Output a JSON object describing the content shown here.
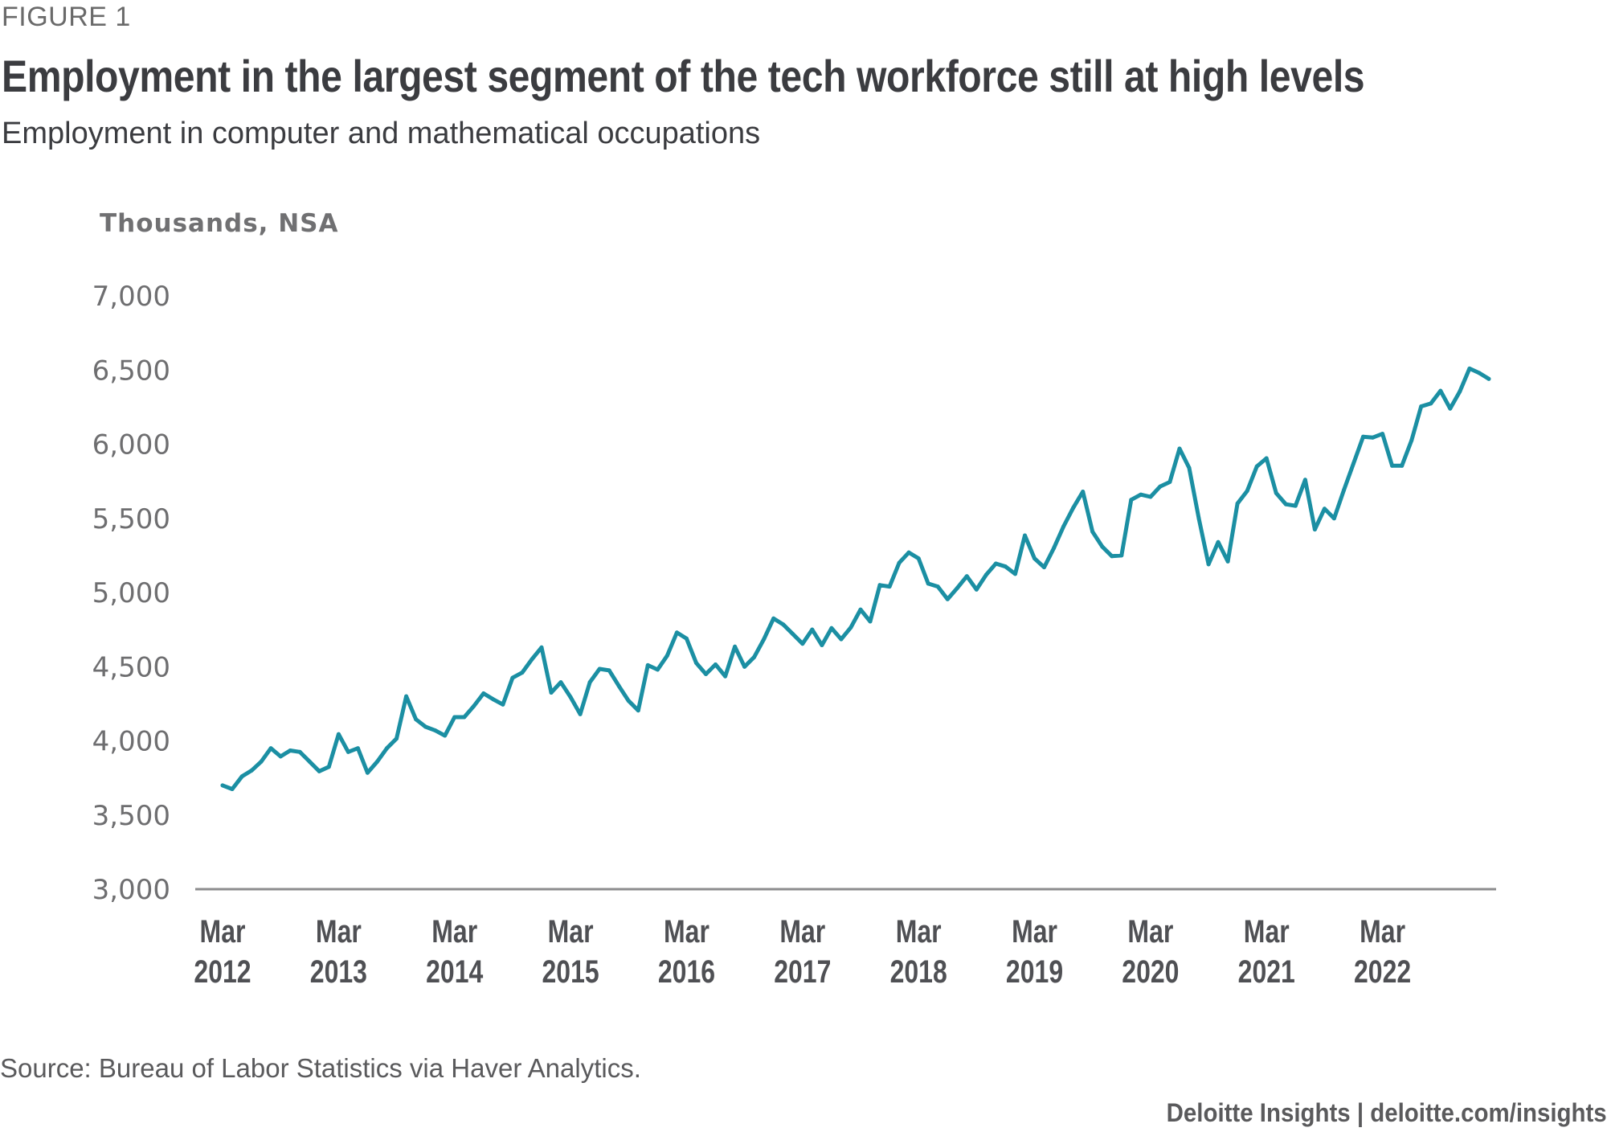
{
  "figure_label": "FIGURE 1",
  "title": "Employment in the largest segment of the tech workforce still at high levels",
  "subtitle": "Employment in computer and mathematical occupations",
  "source": "Source: Bureau of Labor Statistics via Haver Analytics.",
  "footer": "Deloitte Insights | deloitte.com/insights",
  "colors": {
    "line": "#1b8fa3",
    "axis": "#8c8c8e",
    "text": "#3b3c40"
  },
  "chart_data": {
    "type": "line",
    "title": "Employment in the largest segment of the tech workforce still at high levels",
    "subtitle": "Employment in computer and mathematical occupations",
    "xlabel": "",
    "ylabel": "Thousands, NSA",
    "ylim": [
      3000,
      7000
    ],
    "yticks": [
      3000,
      3500,
      4000,
      4500,
      5000,
      5500,
      6000,
      6500,
      7000
    ],
    "ytick_labels": [
      "3,000",
      "3,500",
      "4,000",
      "4,500",
      "5,000",
      "5,500",
      "6,000",
      "6,500",
      "7,000"
    ],
    "xtick_labels": [
      {
        "month": "Mar",
        "year": "2012"
      },
      {
        "month": "Mar",
        "year": "2013"
      },
      {
        "month": "Mar",
        "year": "2014"
      },
      {
        "month": "Mar",
        "year": "2015"
      },
      {
        "month": "Mar",
        "year": "2016"
      },
      {
        "month": "Mar",
        "year": "2017"
      },
      {
        "month": "Mar",
        "year": "2018"
      },
      {
        "month": "Mar",
        "year": "2019"
      },
      {
        "month": "Mar",
        "year": "2020"
      },
      {
        "month": "Mar",
        "year": "2021"
      },
      {
        "month": "Mar",
        "year": "2022"
      }
    ],
    "x_start": "2012-03",
    "x_end": "2023-02",
    "frequency": "monthly",
    "grid": false,
    "legend": "none",
    "series": [
      {
        "name": "Computer and mathematical occupations",
        "values": [
          3700,
          3675,
          3760,
          3800,
          3860,
          3950,
          3895,
          3935,
          3925,
          3860,
          3795,
          3825,
          4045,
          3925,
          3950,
          3785,
          3860,
          3950,
          4015,
          4300,
          4145,
          4095,
          4070,
          4035,
          4160,
          4160,
          4235,
          4320,
          4280,
          4245,
          4425,
          4460,
          4550,
          4630,
          4325,
          4395,
          4295,
          4180,
          4395,
          4485,
          4475,
          4370,
          4270,
          4205,
          4510,
          4480,
          4575,
          4730,
          4690,
          4525,
          4450,
          4515,
          4435,
          4635,
          4500,
          4565,
          4685,
          4825,
          4785,
          4720,
          4655,
          4750,
          4645,
          4760,
          4685,
          4765,
          4885,
          4805,
          5050,
          5040,
          5200,
          5270,
          5230,
          5060,
          5040,
          4955,
          5030,
          5110,
          5020,
          5120,
          5195,
          5175,
          5125,
          5385,
          5230,
          5170,
          5300,
          5445,
          5570,
          5680,
          5410,
          5310,
          5245,
          5250,
          5625,
          5660,
          5645,
          5715,
          5745,
          5970,
          5840,
          5500,
          5190,
          5340,
          5210,
          5600,
          5685,
          5850,
          5905,
          5670,
          5595,
          5585,
          5760,
          5425,
          5565,
          5500,
          5690,
          5870,
          6050,
          6045,
          6070,
          5855,
          5855,
          6025,
          6255,
          6275,
          6360,
          6240,
          6355,
          6510,
          6480,
          6440
        ]
      }
    ]
  }
}
